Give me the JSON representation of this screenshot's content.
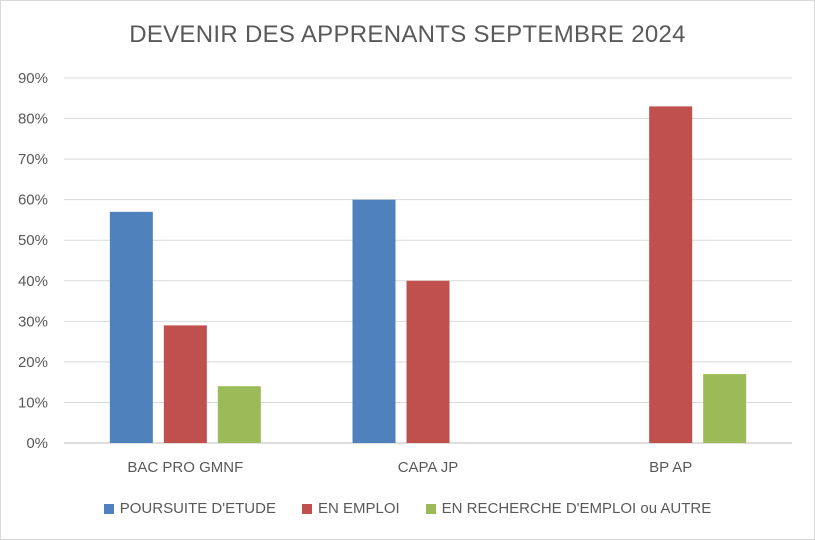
{
  "chart_data": {
    "type": "bar",
    "title": "DEVENIR DES APPRENANTS SEPTEMBRE 2024",
    "xlabel": "",
    "ylabel": "",
    "ylim": [
      0,
      0.9
    ],
    "yticks": [
      0,
      0.1,
      0.2,
      0.3,
      0.4,
      0.5,
      0.6,
      0.7,
      0.8,
      0.9
    ],
    "ytick_labels": [
      "0%",
      "10%",
      "20%",
      "30%",
      "40%",
      "50%",
      "60%",
      "70%",
      "80%",
      "90%"
    ],
    "grid": true,
    "legend_position": "bottom",
    "categories": [
      "BAC PRO GMNF",
      "CAPA JP",
      "BP AP"
    ],
    "series": [
      {
        "name": "POURSUITE D'ETUDE",
        "color": "#4f81bd",
        "values": [
          0.57,
          0.6,
          0
        ]
      },
      {
        "name": "EN EMPLOI",
        "color": "#c0504d",
        "values": [
          0.29,
          0.4,
          0.83
        ]
      },
      {
        "name": "EN RECHERCHE D'EMPLOI ou AUTRE",
        "color": "#9bbb59",
        "values": [
          0.14,
          0,
          0.17
        ]
      }
    ]
  }
}
